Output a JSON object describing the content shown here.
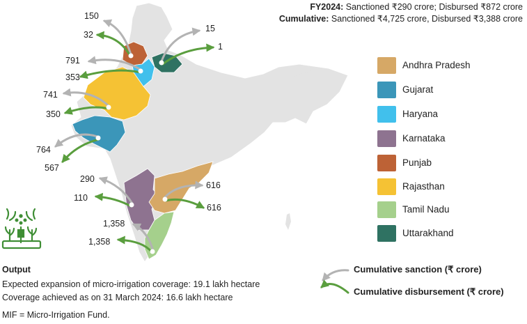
{
  "header": {
    "fy_label": "FY2024:",
    "fy_text": "Sanctioned ₹290 crore; Disbursed ₹872 crore",
    "cum_label": "Cumulative:",
    "cum_text": "Sanctioned ₹4,725 crore, Disbursed ₹3,388 crore"
  },
  "colors": {
    "sanction_arrow": "#b3b3b3",
    "disbursement_arrow": "#5a9e3e",
    "base_map": "#e3e3e3",
    "icon": "#3f8e35"
  },
  "legend": [
    {
      "label": "Andhra Pradesh",
      "color": "#d6a866"
    },
    {
      "label": "Gujarat",
      "color": "#3b96b9"
    },
    {
      "label": "Haryana",
      "color": "#41c0ec"
    },
    {
      "label": "Karnataka",
      "color": "#8e7390"
    },
    {
      "label": "Punjab",
      "color": "#bd6236"
    },
    {
      "label": "Rajasthan",
      "color": "#f5c234"
    },
    {
      "label": "Tamil Nadu",
      "color": "#a5d08c"
    },
    {
      "label": "Uttarakhand",
      "color": "#2f7262"
    }
  ],
  "states": [
    {
      "name": "Punjab",
      "sanction": "150",
      "disbursement": "32"
    },
    {
      "name": "Uttarakhand",
      "sanction": "15",
      "disbursement": "1"
    },
    {
      "name": "Haryana",
      "sanction": "791",
      "disbursement": "353"
    },
    {
      "name": "Rajasthan",
      "sanction": "741",
      "disbursement": "350"
    },
    {
      "name": "Gujarat",
      "sanction": "764",
      "disbursement": "567"
    },
    {
      "name": "Karnataka",
      "sanction": "290",
      "disbursement": "110"
    },
    {
      "name": "Andhra Pradesh",
      "sanction": "616",
      "disbursement": "616"
    },
    {
      "name": "Tamil Nadu",
      "sanction": "1,358",
      "disbursement": "1,358"
    }
  ],
  "output": {
    "title": "Output",
    "line1": "Expected expansion of micro-irrigation coverage: 19.1 lakh hectare",
    "line2": "Coverage achieved as on 31 March 2024: 16.6 lakh hectare"
  },
  "note": "MIF = Micro-Irrigation Fund.",
  "arrow_key": {
    "sanction_label": "Cumulative sanction (₹ crore)",
    "disbursement_label": "Cumulative disbursement (₹ crore)"
  },
  "icons": {
    "irrigation": "irrigation-sprinkler-icon"
  }
}
